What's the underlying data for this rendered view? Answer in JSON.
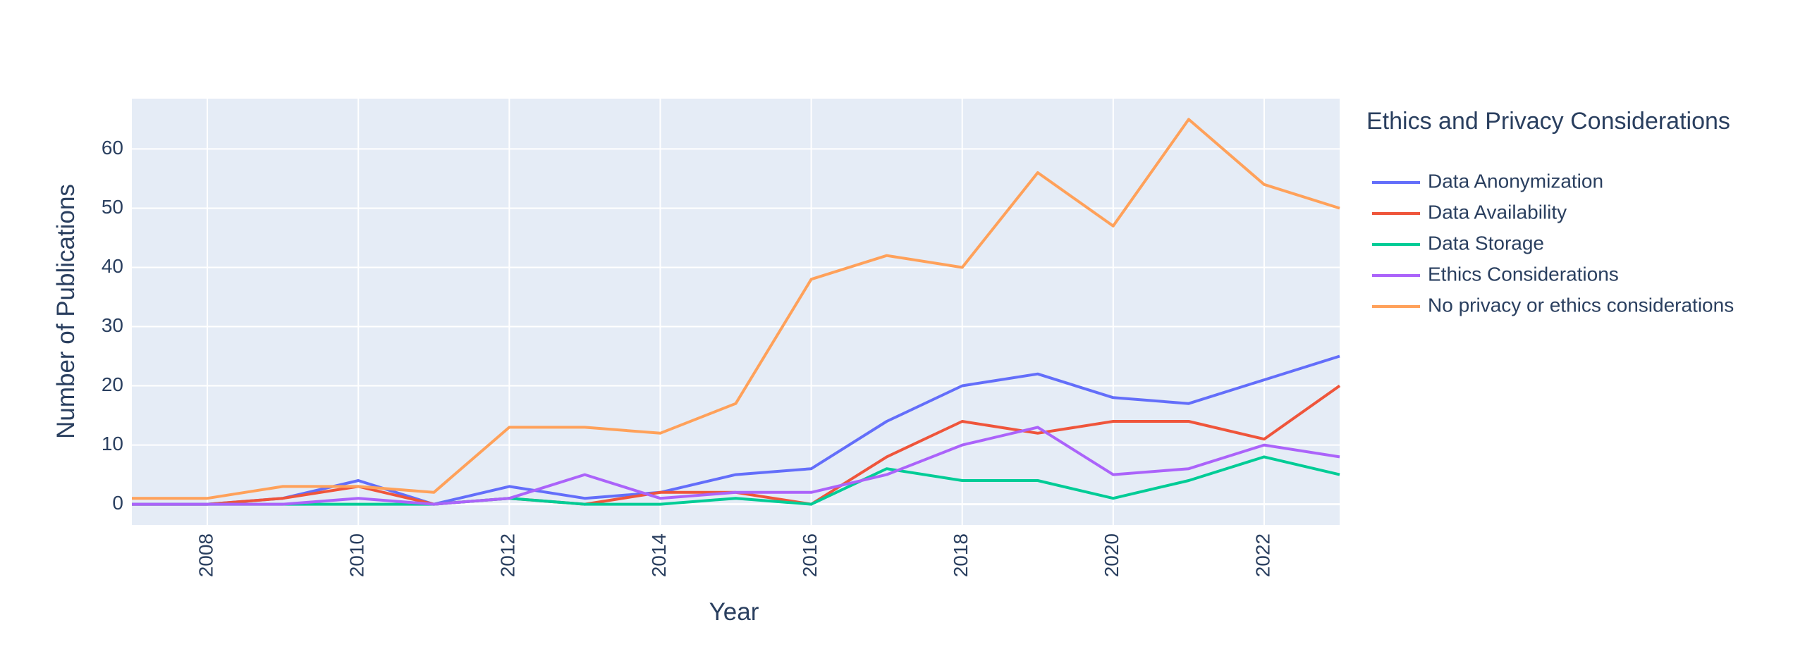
{
  "chart_data": {
    "type": "line",
    "title": "",
    "xlabel": "Year",
    "ylabel": "Number of Publications",
    "xlim": [
      2007,
      2023
    ],
    "ylim": [
      -3.5,
      68.5
    ],
    "x_ticks": [
      2008,
      2010,
      2012,
      2014,
      2016,
      2018,
      2020,
      2022
    ],
    "y_ticks": [
      0,
      10,
      20,
      30,
      40,
      50,
      60
    ],
    "grid": true,
    "legend": {
      "title": "Ethics and Privacy Considerations",
      "placement": "right"
    },
    "x": [
      2007,
      2008,
      2009,
      2010,
      2011,
      2012,
      2013,
      2014,
      2015,
      2016,
      2017,
      2018,
      2019,
      2020,
      2021,
      2022,
      2023
    ],
    "series": [
      {
        "name": "Data Anonymization",
        "color": "#636efa",
        "values": [
          0,
          0,
          1,
          4,
          0,
          3,
          1,
          2,
          5,
          6,
          14,
          20,
          22,
          18,
          17,
          21,
          25
        ]
      },
      {
        "name": "Data Availability",
        "color": "#ef553b",
        "values": [
          0,
          0,
          1,
          3,
          0,
          1,
          0,
          2,
          2,
          0,
          8,
          14,
          12,
          14,
          14,
          11,
          20
        ]
      },
      {
        "name": "Data Storage",
        "color": "#00cc96",
        "values": [
          0,
          0,
          0,
          0,
          0,
          1,
          0,
          0,
          1,
          0,
          6,
          4,
          4,
          1,
          4,
          8,
          5
        ]
      },
      {
        "name": "Ethics Considerations",
        "color": "#ab63fa",
        "values": [
          0,
          0,
          0,
          1,
          0,
          1,
          5,
          1,
          2,
          2,
          5,
          10,
          13,
          5,
          6,
          10,
          8
        ]
      },
      {
        "name": "No privacy or ethics considerations",
        "color": "#ffa15a",
        "values": [
          1,
          1,
          3,
          3,
          2,
          13,
          13,
          12,
          17,
          38,
          42,
          40,
          56,
          47,
          65,
          54,
          50
        ]
      }
    ]
  }
}
